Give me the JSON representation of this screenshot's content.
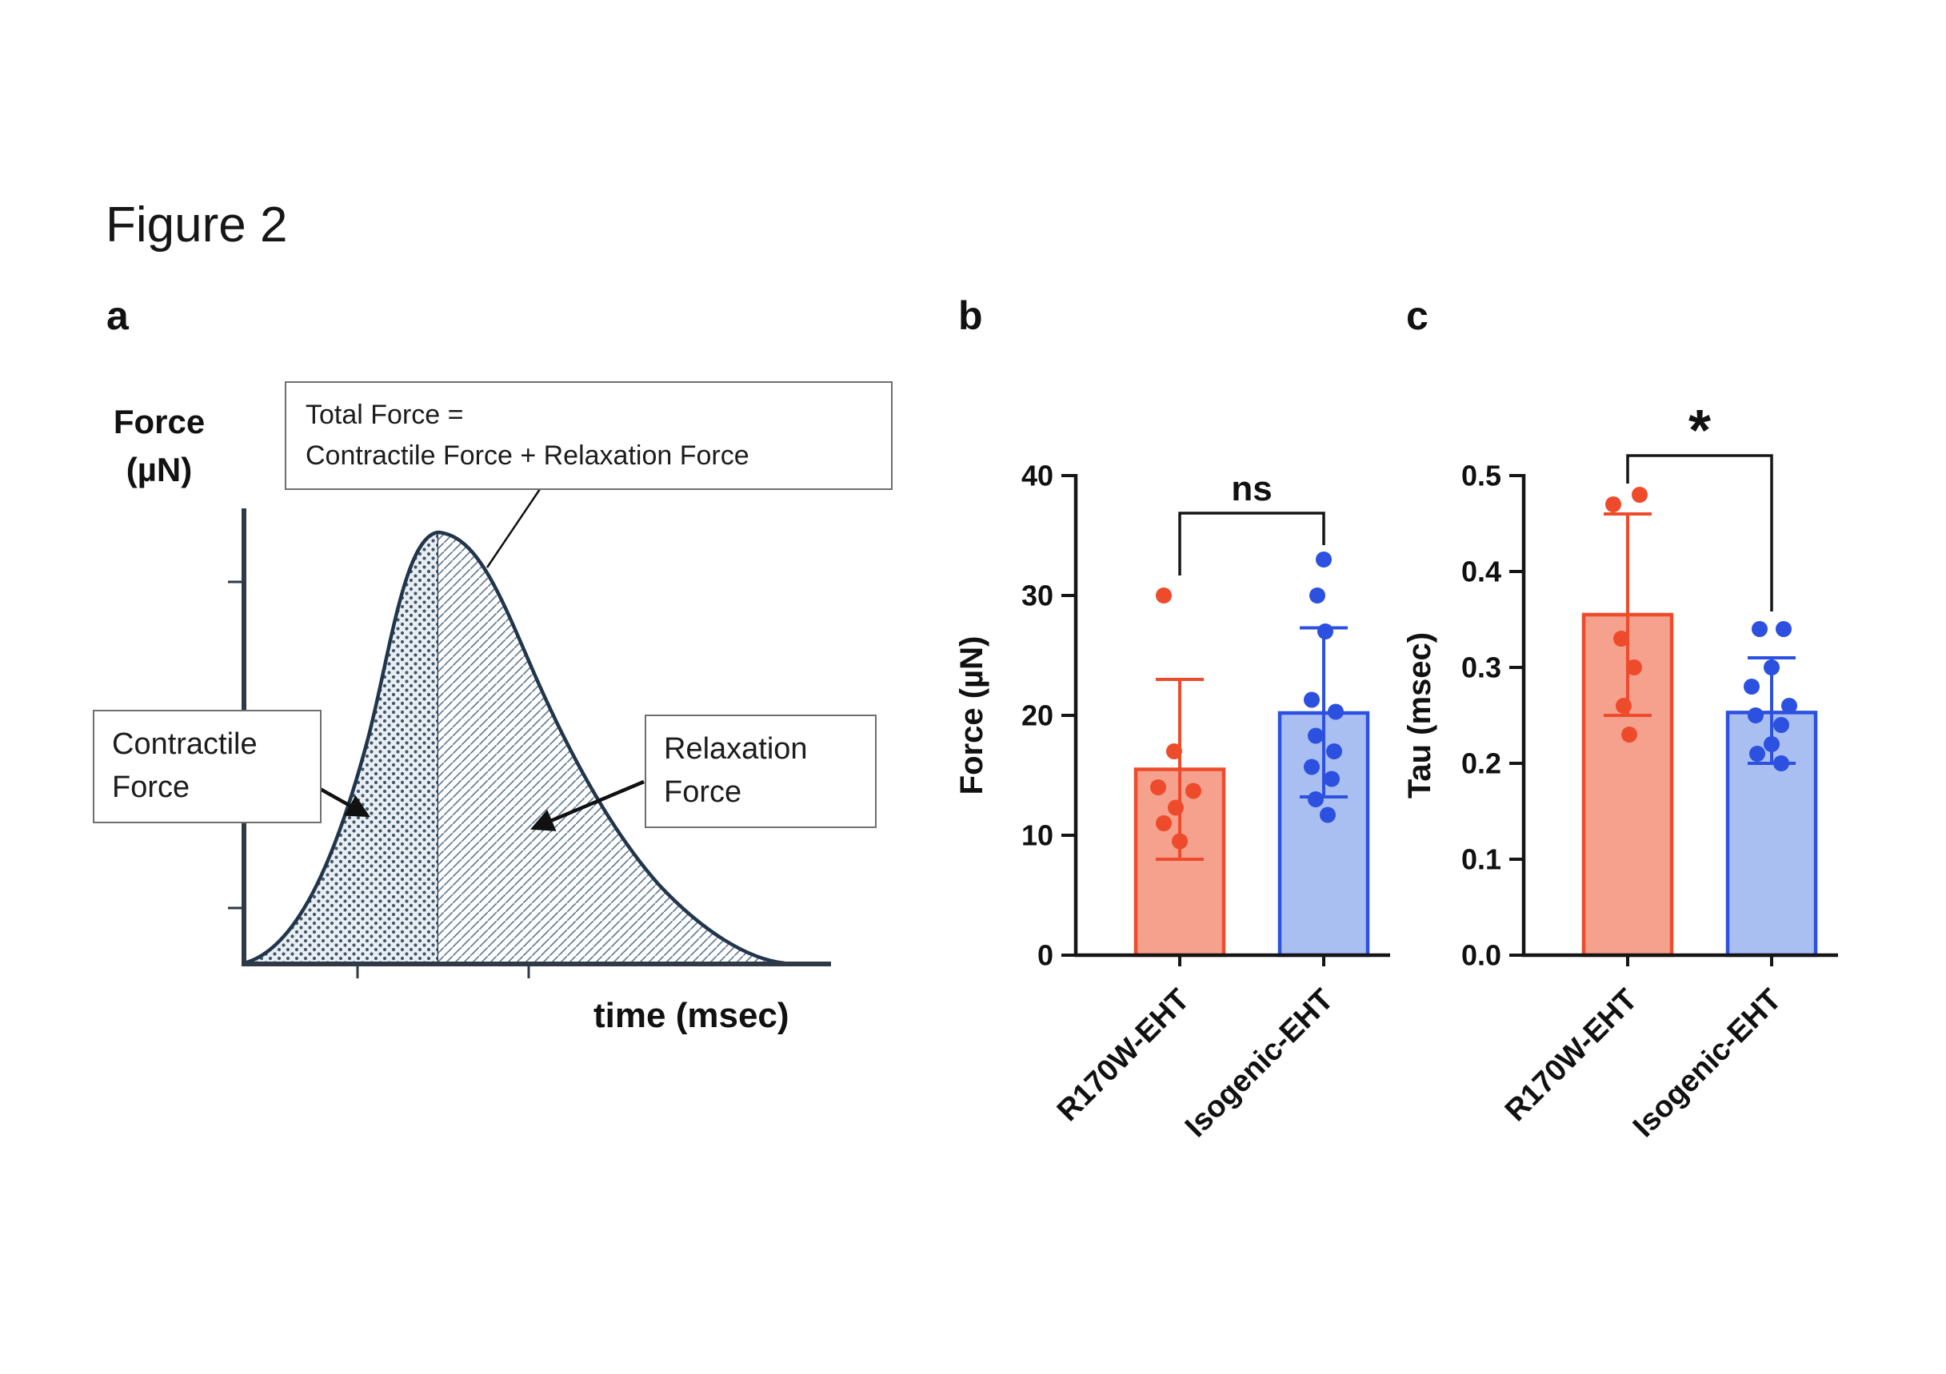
{
  "figure": {
    "title": "Figure 2",
    "panel_labels": {
      "a": "a",
      "b": "b",
      "c": "c"
    }
  },
  "panel_a": {
    "y_axis_title_line1": "Force",
    "y_axis_title_line2": "(µN)",
    "x_axis_title": "time (msec)",
    "total_force_note_line1": "Total Force =",
    "total_force_note_line2": "Contractile Force + Relaxation Force",
    "contractile_label_line1": "Contractile",
    "contractile_label_line2": "Force",
    "relaxation_label_line1": "Relaxation",
    "relaxation_label_line2": "Force",
    "colors": {
      "curve_outline": "#22364b",
      "dot_pattern": "#41566c",
      "hatch_pattern": "#6b8197",
      "axis": "#2e3a46"
    }
  },
  "chart_data": [
    {
      "panel": "b",
      "type": "bar",
      "title": "",
      "xlabel": "",
      "ylabel": "Force (µN)",
      "ylim": [
        0,
        40
      ],
      "ytick_values": [
        0,
        10,
        20,
        30,
        40
      ],
      "ytick_labels": [
        "0",
        "10",
        "20",
        "30",
        "40"
      ],
      "categories": [
        "R170W-EHT",
        "Isogenic-EHT"
      ],
      "significance_label": "ns",
      "grid": false,
      "legend_position": "none",
      "series": [
        {
          "name": "R170W-EHT",
          "mean": 15.5,
          "error_low": 8.0,
          "error_high": 23.0,
          "points": [
            30,
            17,
            14,
            13.7,
            12.3,
            11,
            9.5
          ],
          "point_dx": [
            -20,
            -7,
            -27,
            17,
            -5,
            -20,
            0
          ],
          "bar_fill": "#F5A18D",
          "accent": "#ED4B2C"
        },
        {
          "name": "Isogenic-EHT",
          "mean": 20.2,
          "error_low": 13.2,
          "error_high": 27.3,
          "points": [
            33,
            30,
            27,
            21.3,
            20.3,
            18.3,
            17,
            15.7,
            14.7,
            13,
            11.7
          ],
          "point_dx": [
            0,
            -8,
            2,
            -15,
            15,
            -10,
            13,
            -15,
            10,
            -10,
            5
          ],
          "bar_fill": "#A9BFF2",
          "accent": "#2C50DF"
        }
      ]
    },
    {
      "panel": "c",
      "type": "bar",
      "title": "",
      "xlabel": "",
      "ylabel": "Tau (msec)",
      "ylim": [
        0,
        0.5
      ],
      "ytick_values": [
        0,
        0.1,
        0.2,
        0.3,
        0.4,
        0.5
      ],
      "ytick_labels": [
        "0.0",
        "0.1",
        "0.2",
        "0.3",
        "0.4",
        "0.5"
      ],
      "categories": [
        "R170W-EHT",
        "Isogenic-EHT"
      ],
      "significance_label": "*",
      "grid": false,
      "legend_position": "none",
      "series": [
        {
          "name": "R170W-EHT",
          "mean": 0.355,
          "error_low": 0.25,
          "error_high": 0.46,
          "points": [
            0.48,
            0.47,
            0.33,
            0.3,
            0.26,
            0.23
          ],
          "point_dx": [
            15,
            -18,
            -8,
            8,
            -5,
            2
          ],
          "bar_fill": "#F5A18D",
          "accent": "#ED4B2C"
        },
        {
          "name": "Isogenic-EHT",
          "mean": 0.253,
          "error_low": 0.2,
          "error_high": 0.31,
          "points": [
            0.34,
            0.34,
            0.3,
            0.28,
            0.26,
            0.25,
            0.24,
            0.22,
            0.21,
            0.2
          ],
          "point_dx": [
            -15,
            15,
            0,
            -25,
            22,
            -20,
            12,
            0,
            -18,
            12
          ],
          "bar_fill": "#A9BFF2",
          "accent": "#2C50DF"
        }
      ]
    }
  ]
}
